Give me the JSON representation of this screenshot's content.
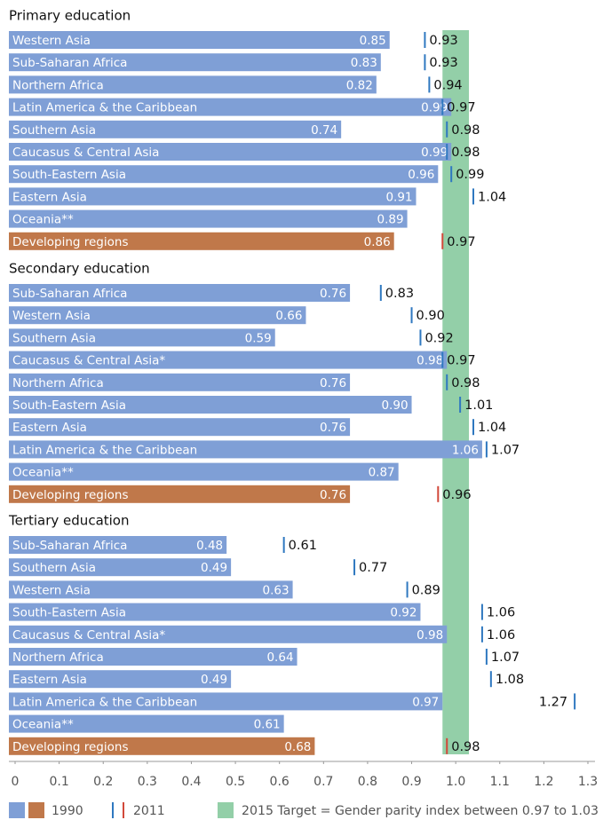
{
  "chart_data": {
    "type": "bar",
    "xlim": [
      0,
      1.3
    ],
    "xticks": [
      0,
      0.1,
      0.2,
      0.3,
      0.4,
      0.5,
      0.6,
      0.7,
      0.8,
      0.9,
      {
        "value": 1,
        "label": "1.0"
      },
      1.1,
      1.2,
      1.3
    ],
    "series": [
      {
        "name": "1990",
        "colors": [
          "#7f9fd6",
          "#c0784a"
        ]
      },
      {
        "name": "2011",
        "colors": [
          "#2f78c0",
          "#d2483a"
        ]
      }
    ],
    "target": {
      "label": "2015 Target = Gender parity index between 0.97 to 1.03",
      "range": [
        0.97,
        1.03
      ],
      "color": "#93cfa8"
    },
    "panels": [
      {
        "title": "Primary education",
        "categories": [
          "Western Asia",
          "Sub-Saharan Africa",
          "Northern Africa",
          "Latin America & the Caribbean",
          "Southern Asia",
          "Caucasus & Central Asia",
          "South-Eastern Asia",
          "Eastern Asia",
          "Oceania**",
          "Developing regions"
        ],
        "series": [
          {
            "values": [
              0.85,
              0.83,
              0.82,
              0.99,
              0.74,
              0.99,
              0.96,
              0.91,
              0.89,
              0.86
            ],
            "value_labels": [
              "0.85",
              "0.83",
              "0.82",
              "0.99",
              "0.74",
              "0.99",
              "0.96",
              "0.91",
              "0.89",
              "0.86"
            ],
            "colors": [
              "#7f9fd6",
              "#7f9fd6",
              "#7f9fd6",
              "#7f9fd6",
              "#7f9fd6",
              "#7f9fd6",
              "#7f9fd6",
              "#7f9fd6",
              "#7f9fd6",
              "#c0784a"
            ]
          },
          {
            "values": [
              0.93,
              0.93,
              0.94,
              0.97,
              0.98,
              0.98,
              0.99,
              1.04,
              null,
              0.97
            ],
            "value_labels": [
              "0.93",
              "0.93",
              "0.94",
              "0.97",
              "0.98",
              "0.98",
              "0.99",
              "1.04",
              null,
              "0.97"
            ],
            "colors": [
              "#2f78c0",
              "#2f78c0",
              "#2f78c0",
              "#2f78c0",
              "#2f78c0",
              "#2f78c0",
              "#2f78c0",
              "#2f78c0",
              null,
              "#d2483a"
            ]
          }
        ]
      },
      {
        "title": "Secondary education",
        "categories": [
          "Sub-Saharan Africa",
          "Western Asia",
          "Southern Asia",
          "Caucasus & Central Asia*",
          "Northern Africa",
          "South-Eastern Asia",
          "Eastern Asia",
          "Latin America & the Caribbean",
          "Oceania**",
          "Developing regions"
        ],
        "series": [
          {
            "values": [
              0.76,
              0.66,
              0.59,
              0.98,
              0.76,
              0.9,
              0.76,
              1.06,
              0.87,
              0.76
            ],
            "value_labels": [
              "0.76",
              "0.66",
              "0.59",
              "0.98",
              "0.76",
              "0.90",
              "0.76",
              "1.06",
              "0.87",
              "0.76"
            ],
            "colors": [
              "#7f9fd6",
              "#7f9fd6",
              "#7f9fd6",
              "#7f9fd6",
              "#7f9fd6",
              "#7f9fd6",
              "#7f9fd6",
              "#7f9fd6",
              "#7f9fd6",
              "#c0784a"
            ]
          },
          {
            "values": [
              0.83,
              0.9,
              0.92,
              0.97,
              0.98,
              1.01,
              1.04,
              1.07,
              null,
              0.96
            ],
            "value_labels": [
              "0.83",
              "0.90",
              "0.92",
              "0.97",
              "0.98",
              "1.01",
              "1.04",
              "1.07",
              null,
              "0.96"
            ],
            "colors": [
              "#2f78c0",
              "#2f78c0",
              "#2f78c0",
              "#2f78c0",
              "#2f78c0",
              "#2f78c0",
              "#2f78c0",
              "#2f78c0",
              null,
              "#d2483a"
            ]
          }
        ]
      },
      {
        "title": "Tertiary education",
        "categories": [
          "Sub-Saharan Africa",
          "Southern Asia",
          "Western Asia",
          "South-Eastern Asia",
          "Caucasus & Central Asia*",
          "Northern Africa",
          "Eastern Asia",
          "Latin America & the Caribbean",
          "Oceania**",
          "Developing regions"
        ],
        "series": [
          {
            "values": [
              0.48,
              0.49,
              0.63,
              0.92,
              0.98,
              0.64,
              0.49,
              0.97,
              0.61,
              0.68
            ],
            "value_labels": [
              "0.48",
              "0.49",
              "0.63",
              "0.92",
              "0.98",
              "0.64",
              "0.49",
              "0.97",
              "0.61",
              "0.68"
            ],
            "colors": [
              "#7f9fd6",
              "#7f9fd6",
              "#7f9fd6",
              "#7f9fd6",
              "#7f9fd6",
              "#7f9fd6",
              "#7f9fd6",
              "#7f9fd6",
              "#7f9fd6",
              "#c0784a"
            ]
          },
          {
            "values": [
              0.61,
              0.77,
              0.89,
              1.06,
              1.06,
              1.07,
              1.08,
              1.27,
              null,
              0.98
            ],
            "value_labels": [
              "0.61",
              "0.77",
              "0.89",
              "1.06",
              "1.06",
              "1.07",
              "1.08",
              "1.27",
              null,
              "0.98"
            ],
            "colors": [
              "#2f78c0",
              "#2f78c0",
              "#2f78c0",
              "#2f78c0",
              "#2f78c0",
              "#2f78c0",
              "#2f78c0",
              "#2f78c0",
              null,
              "#d2483a"
            ]
          }
        ]
      }
    ]
  }
}
